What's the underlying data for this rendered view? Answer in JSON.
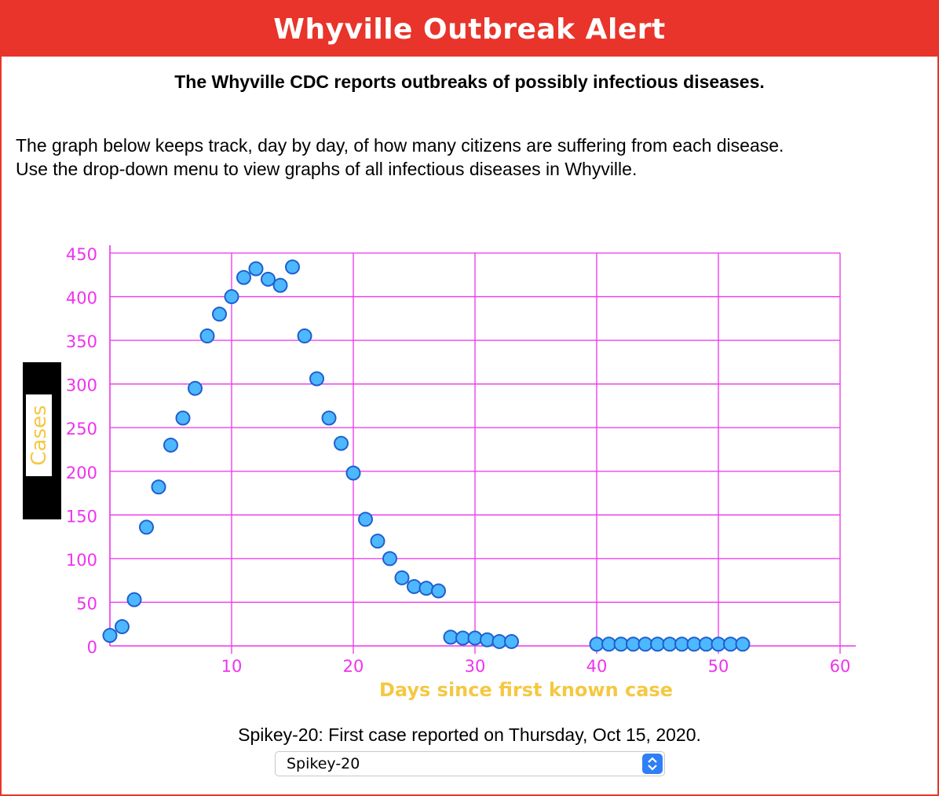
{
  "header": {
    "title": "Whyville Outbreak Alert"
  },
  "intro": {
    "subtitle": "The Whyville CDC reports outbreaks of possibly infectious diseases.",
    "line1": "The graph below keeps track, day by day, of how many citizens are suffering from each disease.",
    "line2": "Use the drop-down menu to view graphs of all infectious diseases in Whyville."
  },
  "colors": {
    "accent": "#e8342a",
    "grid": "#ee33ee",
    "point_fill": "#4db8ff",
    "point_stroke": "#1f5fcf",
    "axis_label": "#f5c842",
    "ylabel_bg": "#000000"
  },
  "chart_data": {
    "type": "scatter",
    "xlabel": "Days since first known case",
    "ylabel": "Cases",
    "xlim": [
      0,
      60
    ],
    "ylim": [
      0,
      450
    ],
    "x_ticks": [
      10,
      20,
      30,
      40,
      50,
      60
    ],
    "y_ticks": [
      0,
      50,
      100,
      150,
      200,
      250,
      300,
      350,
      400,
      450
    ],
    "grid": true,
    "series": [
      {
        "points": [
          [
            0,
            12
          ],
          [
            1,
            22
          ],
          [
            2,
            53
          ],
          [
            3,
            136
          ],
          [
            4,
            182
          ],
          [
            5,
            230
          ],
          [
            6,
            261
          ],
          [
            7,
            295
          ],
          [
            8,
            355
          ],
          [
            9,
            380
          ],
          [
            10,
            400
          ],
          [
            11,
            422
          ],
          [
            12,
            432
          ],
          [
            13,
            420
          ],
          [
            14,
            413
          ],
          [
            15,
            434
          ],
          [
            16,
            355
          ],
          [
            17,
            306
          ],
          [
            18,
            261
          ],
          [
            19,
            232
          ],
          [
            20,
            198
          ],
          [
            21,
            145
          ],
          [
            22,
            120
          ],
          [
            23,
            100
          ],
          [
            24,
            78
          ],
          [
            25,
            68
          ],
          [
            26,
            66
          ],
          [
            27,
            63
          ],
          [
            28,
            10
          ],
          [
            29,
            9
          ],
          [
            30,
            9
          ],
          [
            31,
            7
          ],
          [
            32,
            5
          ],
          [
            33,
            5
          ],
          [
            40,
            2
          ],
          [
            41,
            2
          ],
          [
            42,
            2
          ],
          [
            43,
            2
          ],
          [
            44,
            2
          ],
          [
            45,
            2
          ],
          [
            46,
            2
          ],
          [
            47,
            2
          ],
          [
            48,
            2
          ],
          [
            49,
            2
          ],
          [
            50,
            2
          ],
          [
            51,
            2
          ],
          [
            52,
            2
          ]
        ]
      }
    ]
  },
  "footer": {
    "caption": "Spikey-20: First case reported on Thursday, Oct 15, 2020.",
    "select_value": "Spikey-20"
  }
}
